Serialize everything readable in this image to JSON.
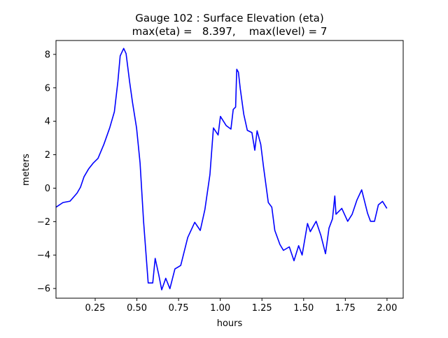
{
  "chart_data": {
    "type": "line",
    "title": "Gauge 102 : Surface Elevation (eta)",
    "subtitle": "max(eta) =   8.397,    max(level) = 7",
    "xlabel": "hours",
    "ylabel": "meters",
    "xlim": [
      0.015,
      2.097
    ],
    "ylim": [
      -6.58,
      8.83
    ],
    "xticks": [
      0.25,
      0.5,
      0.75,
      1.0,
      1.25,
      1.5,
      1.75,
      2.0
    ],
    "xtick_labels": [
      "0.25",
      "0.50",
      "0.75",
      "1.00",
      "1.25",
      "1.50",
      "1.75",
      "2.00"
    ],
    "yticks": [
      -6,
      -4,
      -2,
      0,
      2,
      4,
      6,
      8
    ],
    "ytick_labels": [
      "−6",
      "−4",
      "−2",
      "0",
      "2",
      "4",
      "6",
      "8"
    ],
    "grid": false,
    "series": [
      {
        "color": "#0000ff",
        "x": [
          0.015,
          0.057,
          0.099,
          0.141,
          0.162,
          0.183,
          0.211,
          0.239,
          0.267,
          0.302,
          0.337,
          0.365,
          0.386,
          0.4,
          0.421,
          0.435,
          0.456,
          0.474,
          0.498,
          0.519,
          0.54,
          0.568,
          0.595,
          0.61,
          0.631,
          0.649,
          0.673,
          0.698,
          0.728,
          0.763,
          0.805,
          0.847,
          0.88,
          0.908,
          0.938,
          0.959,
          0.987,
          1.001,
          1.036,
          1.064,
          1.078,
          1.092,
          1.099,
          1.109,
          1.12,
          1.141,
          1.162,
          1.19,
          1.207,
          1.221,
          1.243,
          1.26,
          1.288,
          1.309,
          1.327,
          1.358,
          1.379,
          1.414,
          1.442,
          1.47,
          1.491,
          1.523,
          1.54,
          1.575,
          1.603,
          1.631,
          1.652,
          1.673,
          1.687,
          1.694,
          1.729,
          1.764,
          1.791,
          1.819,
          1.848,
          1.883,
          1.901,
          1.925,
          1.948,
          1.973,
          1.999
        ],
        "y": [
          -1.14,
          -0.86,
          -0.78,
          -0.3,
          0.06,
          0.68,
          1.16,
          1.51,
          1.78,
          2.62,
          3.6,
          4.57,
          6.38,
          7.91,
          8.36,
          8.05,
          6.38,
          5.13,
          3.6,
          1.51,
          -1.98,
          -5.67,
          -5.67,
          -4.2,
          -5.18,
          -6.08,
          -5.39,
          -6.01,
          -4.83,
          -4.62,
          -2.95,
          -2.04,
          -2.53,
          -1.28,
          0.81,
          3.6,
          3.18,
          4.29,
          3.74,
          3.53,
          4.71,
          4.85,
          7.11,
          6.94,
          5.96,
          4.43,
          3.46,
          3.32,
          2.27,
          3.43,
          2.62,
          1.23,
          -0.86,
          -1.14,
          -2.53,
          -3.37,
          -3.72,
          -3.51,
          -4.34,
          -3.44,
          -4.0,
          -2.11,
          -2.6,
          -1.98,
          -2.81,
          -3.92,
          -2.39,
          -1.83,
          -0.47,
          -1.56,
          -1.21,
          -1.98,
          -1.56,
          -0.72,
          -0.1,
          -1.49,
          -1.98,
          -1.98,
          -1.0,
          -0.79,
          -1.21
        ]
      }
    ]
  }
}
